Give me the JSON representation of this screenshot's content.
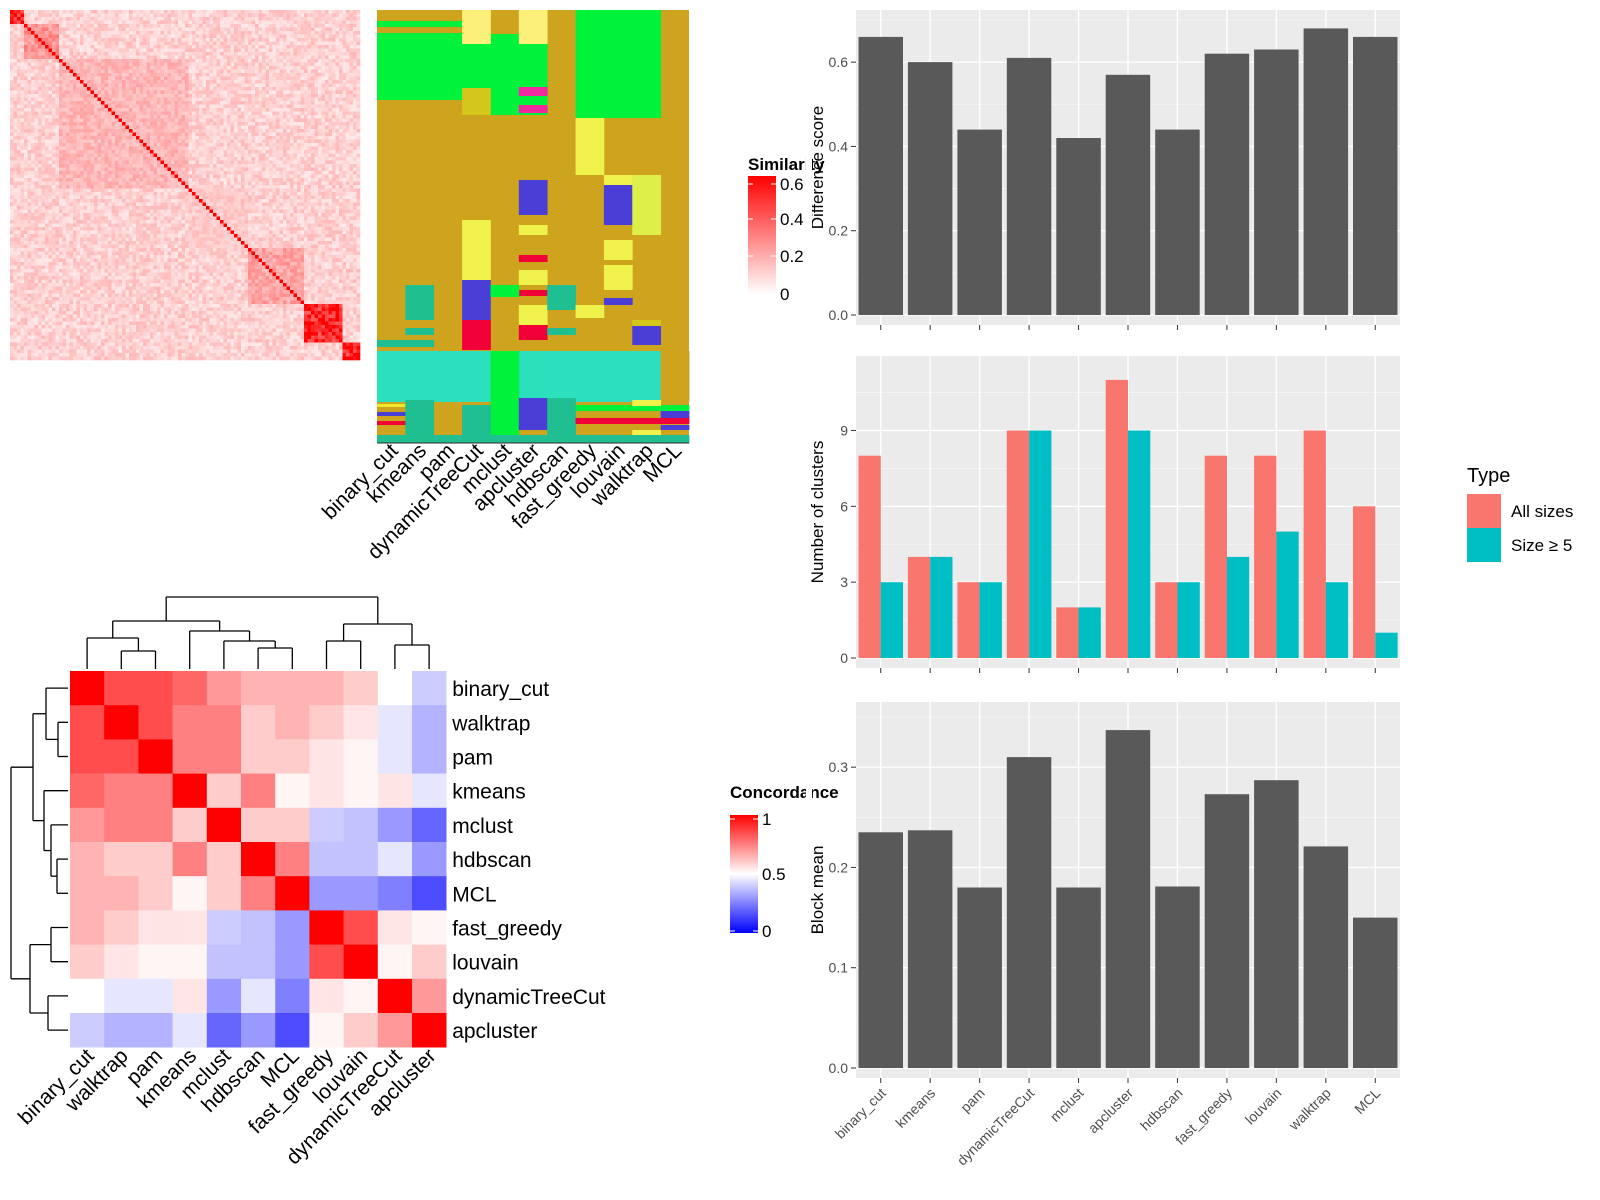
{
  "colors": {
    "panel_bg": "#ebebeb",
    "bar_fill": "#595959",
    "all_sizes": "#f8766d",
    "size_ge5": "#00bfc4",
    "heat_red": "#ff0000",
    "heat_blue": "#0000ff",
    "cluster_bg": "#cea41f"
  },
  "methods": [
    "binary_cut",
    "kmeans",
    "pam",
    "dynamicTreeCut",
    "mclust",
    "apcluster",
    "hdbscan",
    "fast_greedy",
    "louvain",
    "walktrap",
    "MCL"
  ],
  "similarity_legend": {
    "title": "Similarity",
    "ticks": [
      "0.6",
      "0.4",
      "0.2",
      "0"
    ]
  },
  "concordance_legend": {
    "title": "Concordance",
    "ticks": [
      "1",
      "0.5",
      "0"
    ]
  },
  "chart_data": [
    {
      "type": "heatmap",
      "title": "",
      "legend_title": "Similarity",
      "color_range": [
        0,
        0.6
      ],
      "matrix_size": 100,
      "diagonal_blocks": [
        {
          "start": 1,
          "end": 4,
          "level": 0.6
        },
        {
          "start": 5,
          "end": 14,
          "level": 0.3
        },
        {
          "start": 15,
          "end": 51,
          "level": 0.2
        },
        {
          "start": 52,
          "end": 68,
          "level": 0.15
        },
        {
          "start": 69,
          "end": 84,
          "level": 0.25
        },
        {
          "start": 85,
          "end": 95,
          "level": 0.6
        },
        {
          "start": 96,
          "end": 100,
          "level": 0.6
        }
      ]
    },
    {
      "type": "heatmap",
      "title": "",
      "columns": [
        "binary_cut",
        "kmeans",
        "pam",
        "dynamicTreeCut",
        "mclust",
        "apcluster",
        "hdbscan",
        "fast_greedy",
        "louvain",
        "walktrap",
        "MCL"
      ]
    },
    {
      "type": "heatmap",
      "title": "",
      "legend_title": "Concordance",
      "rows": [
        "binary_cut",
        "walktrap",
        "pam",
        "kmeans",
        "mclust",
        "hdbscan",
        "MCL",
        "fast_greedy",
        "louvain",
        "dynamicTreeCut",
        "apcluster"
      ],
      "columns": [
        "binary_cut",
        "walktrap",
        "pam",
        "kmeans",
        "mclust",
        "hdbscan",
        "MCL",
        "fast_greedy",
        "louvain",
        "dynamicTreeCut",
        "apcluster"
      ],
      "values": [
        [
          1.0,
          0.85,
          0.85,
          0.8,
          0.7,
          0.65,
          0.65,
          0.65,
          0.6,
          0.5,
          0.4
        ],
        [
          0.85,
          1.0,
          0.85,
          0.75,
          0.75,
          0.6,
          0.65,
          0.6,
          0.55,
          0.45,
          0.35
        ],
        [
          0.85,
          0.85,
          1.0,
          0.75,
          0.75,
          0.6,
          0.6,
          0.55,
          0.52,
          0.45,
          0.35
        ],
        [
          0.8,
          0.75,
          0.75,
          1.0,
          0.6,
          0.75,
          0.52,
          0.55,
          0.52,
          0.55,
          0.45
        ],
        [
          0.7,
          0.75,
          0.75,
          0.6,
          1.0,
          0.6,
          0.6,
          0.4,
          0.38,
          0.3,
          0.2
        ],
        [
          0.65,
          0.6,
          0.6,
          0.75,
          0.6,
          1.0,
          0.75,
          0.38,
          0.38,
          0.45,
          0.3
        ],
        [
          0.65,
          0.65,
          0.6,
          0.52,
          0.6,
          0.75,
          1.0,
          0.3,
          0.3,
          0.25,
          0.15
        ],
        [
          0.65,
          0.6,
          0.55,
          0.55,
          0.4,
          0.38,
          0.3,
          1.0,
          0.85,
          0.55,
          0.52
        ],
        [
          0.6,
          0.55,
          0.52,
          0.52,
          0.38,
          0.38,
          0.3,
          0.85,
          1.0,
          0.52,
          0.6
        ],
        [
          0.5,
          0.45,
          0.45,
          0.55,
          0.3,
          0.45,
          0.25,
          0.55,
          0.52,
          1.0,
          0.7
        ],
        [
          0.4,
          0.35,
          0.35,
          0.45,
          0.2,
          0.3,
          0.15,
          0.52,
          0.6,
          0.7,
          1.0
        ]
      ],
      "color_range": [
        0,
        1
      ]
    },
    {
      "type": "bar",
      "categories": [
        "binary_cut",
        "kmeans",
        "pam",
        "dynamicTreeCut",
        "mclust",
        "apcluster",
        "hdbscan",
        "fast_greedy",
        "louvain",
        "walktrap",
        "MCL"
      ],
      "values": [
        0.66,
        0.6,
        0.44,
        0.61,
        0.42,
        0.57,
        0.44,
        0.62,
        0.63,
        0.68,
        0.66
      ],
      "title": "",
      "xlabel": "",
      "ylabel": "Difference score",
      "ylim": [
        0,
        0.7
      ],
      "yticks": [
        0.0,
        0.2,
        0.4,
        0.6
      ],
      "ytick_labels": [
        "0.0",
        "0.2",
        "0.4",
        "0.6"
      ],
      "grid": true
    },
    {
      "type": "bar",
      "categories": [
        "binary_cut",
        "kmeans",
        "pam",
        "dynamicTreeCut",
        "mclust",
        "apcluster",
        "hdbscan",
        "fast_greedy",
        "louvain",
        "walktrap",
        "MCL"
      ],
      "series": [
        {
          "name": "All sizes",
          "values": [
            8,
            4,
            3,
            9,
            2,
            11,
            3,
            8,
            8,
            9,
            6
          ]
        },
        {
          "name": "Size ≥ 5",
          "values": [
            3,
            4,
            3,
            9,
            2,
            9,
            3,
            4,
            5,
            3,
            1
          ]
        }
      ],
      "title": "",
      "xlabel": "",
      "ylabel": "Number of clusters",
      "ylim": [
        0,
        11.55
      ],
      "yticks": [
        0,
        3,
        6,
        9
      ],
      "ytick_labels": [
        "0",
        "3",
        "6",
        "9"
      ],
      "grid": true,
      "legend_title": "Type",
      "legend_position": "right"
    },
    {
      "type": "bar",
      "categories": [
        "binary_cut",
        "kmeans",
        "pam",
        "dynamicTreeCut",
        "mclust",
        "apcluster",
        "hdbscan",
        "fast_greedy",
        "louvain",
        "walktrap",
        "MCL"
      ],
      "values": [
        0.235,
        0.237,
        0.18,
        0.31,
        0.18,
        0.337,
        0.181,
        0.273,
        0.287,
        0.221,
        0.15
      ],
      "title": "",
      "xlabel": "",
      "ylabel": "Block mean",
      "ylim": [
        0,
        0.355
      ],
      "yticks": [
        0.0,
        0.1,
        0.2,
        0.3
      ],
      "ytick_labels": [
        "0.0",
        "0.1",
        "0.2",
        "0.3"
      ],
      "grid": true
    }
  ]
}
